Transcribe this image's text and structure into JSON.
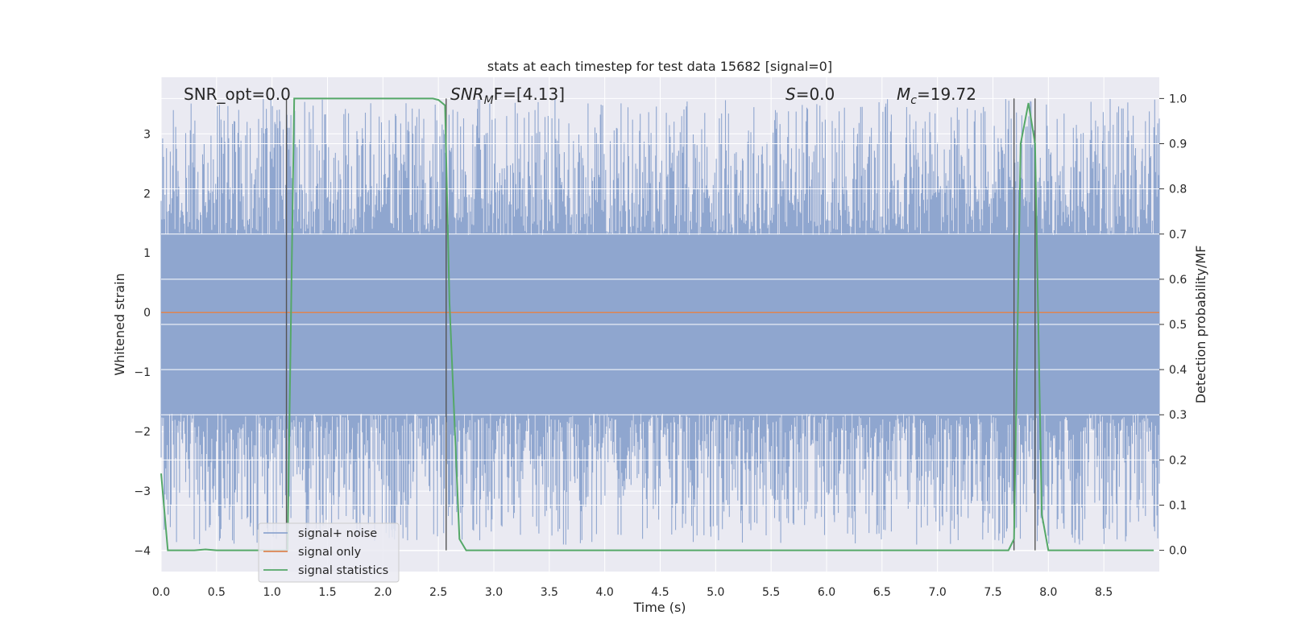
{
  "chart_data": {
    "type": "line",
    "title": "stats at each timestep for test data 15682 [signal=0]",
    "xlabel": "Time (s)",
    "ylabel_left": "Whitened strain",
    "ylabel_right": "Detection probability/MF",
    "xlim": [
      0.0,
      9.0
    ],
    "ylim_left": [
      -4.35,
      3.95
    ],
    "ylim_right": [
      -0.047,
      1.047
    ],
    "xticks": [
      "0.0",
      "0.5",
      "1.0",
      "1.5",
      "2.0",
      "2.5",
      "3.0",
      "3.5",
      "4.0",
      "4.5",
      "5.0",
      "5.5",
      "6.0",
      "6.5",
      "7.0",
      "7.5",
      "8.0",
      "8.5"
    ],
    "yticks_left": [
      "3",
      "2",
      "1",
      "0",
      "−1",
      "−2",
      "−3",
      "−4"
    ],
    "yticks_right": [
      "1.0",
      "0.9",
      "0.8",
      "0.7",
      "0.6",
      "0.5",
      "0.4",
      "0.3",
      "0.2",
      "0.1",
      "0.0"
    ],
    "grid": true,
    "legend_position": "lower-left",
    "annotations": {
      "snr_opt": "SNR_opt=0.0",
      "snr_mf_sym": "SNR",
      "snr_mf_sub": "M",
      "snr_mf_rest": "F=[4.13]",
      "s_sym": "S",
      "s_rest": "=0.0",
      "mc_sym": "M",
      "mc_sub": "c",
      "mc_rest": "=19.72"
    },
    "noise_band": {
      "core_low": -1.7,
      "core_high": 1.3,
      "peak_high": 3.6,
      "peak_low": -3.9
    },
    "vertical_markers": [
      1.13,
      2.57,
      7.69,
      7.88
    ],
    "series": [
      {
        "name": "signal+ noise",
        "color": "#8fa6cf",
        "axis": "left",
        "kind": "whitened strain"
      },
      {
        "name": "signal only",
        "color": "#dd8452",
        "axis": "left",
        "x": [
          0.0,
          9.0
        ],
        "y": [
          0.0,
          0.0
        ]
      },
      {
        "name": "signal statistics",
        "color": "#55a868",
        "axis": "right",
        "x": [
          0.0,
          0.06,
          0.1,
          0.15,
          0.2,
          0.3,
          0.4,
          0.5,
          0.6,
          0.8,
          1.0,
          1.1,
          1.14,
          1.2,
          1.3,
          1.5,
          2.0,
          2.3,
          2.45,
          2.5,
          2.56,
          2.6,
          2.69,
          2.75,
          2.85,
          3.0,
          4.0,
          5.0,
          6.0,
          7.0,
          7.5,
          7.64,
          7.69,
          7.75,
          7.82,
          7.88,
          7.94,
          8.0,
          8.5,
          8.95
        ],
        "y": [
          0.17,
          0.0,
          0.0,
          0.0,
          0.0,
          0.0,
          0.002,
          0.0,
          0.0,
          0.0,
          0.0,
          0.0,
          0.0,
          1.0,
          1.0,
          1.0,
          1.0,
          1.0,
          1.0,
          0.997,
          0.985,
          0.55,
          0.025,
          0.0,
          0.0,
          0.0,
          0.0,
          0.0,
          0.0,
          0.0,
          0.0,
          0.0,
          0.025,
          0.9,
          0.99,
          0.9,
          0.08,
          0.0,
          0.0,
          0.0
        ]
      }
    ]
  }
}
